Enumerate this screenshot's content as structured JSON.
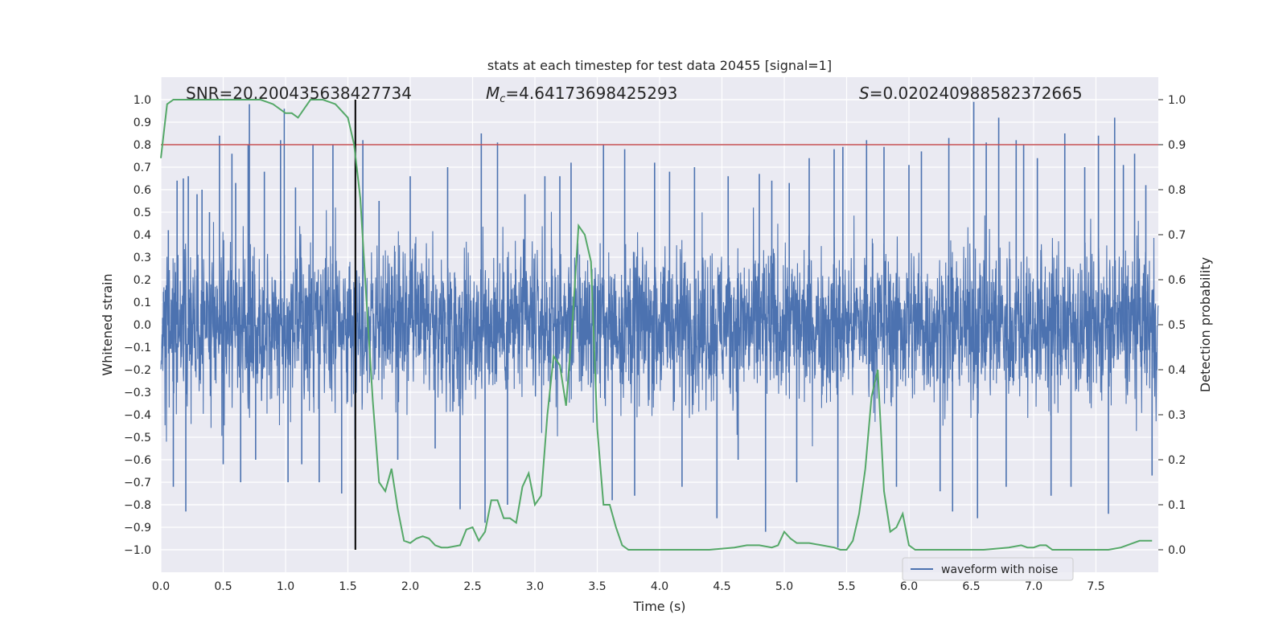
{
  "chart_data": {
    "type": "line",
    "title": "stats at each timestep for test data 20455 [signal=1]",
    "xlabel": "Time (s)",
    "ylabel": "Whitened strain",
    "y2label": "Detection probability",
    "xlim": [
      0.0,
      8.0
    ],
    "ylim": [
      -1.1,
      1.1
    ],
    "y2lim": [
      -0.05,
      1.05
    ],
    "xticks": [
      "0.0",
      "0.5",
      "1.0",
      "1.5",
      "2.0",
      "2.5",
      "3.0",
      "3.5",
      "4.0",
      "4.5",
      "5.0",
      "5.5",
      "6.0",
      "6.5",
      "7.0",
      "7.5"
    ],
    "yticks": [
      "1.0",
      "0.9",
      "0.8",
      "0.7",
      "0.6",
      "0.5",
      "0.4",
      "0.3",
      "0.2",
      "0.1",
      "0.0",
      "−0.1",
      "−0.2",
      "−0.3",
      "−0.4",
      "−0.5",
      "−0.6",
      "−0.7",
      "−0.8",
      "−0.9",
      "−1.0"
    ],
    "y2ticks": [
      "1.0",
      "0.9",
      "0.8",
      "0.7",
      "0.6",
      "0.5",
      "0.4",
      "0.3",
      "0.2",
      "0.1",
      "0.0"
    ],
    "grid": true,
    "legend_placement": "lower-right",
    "annotations": {
      "snr": "SNR=20.200435638427734",
      "mc_symbol": "M",
      "mc_sub": "c",
      "mc_value": "=4.64173698425293",
      "s_symbol": "S",
      "s_value": "=0.020240988582372665"
    },
    "threshold": {
      "value": 0.9,
      "axis": "right",
      "color": "#c44e52"
    },
    "marker_time": 1.56,
    "series": [
      {
        "name": "waveform with noise",
        "color": "#4c72b0",
        "axis": "left",
        "description_note": "dense noise",
        "typical_amplitude": 0.4,
        "peaks": [
          [
            0.06,
            0.42
          ],
          [
            0.1,
            -0.72
          ],
          [
            0.13,
            0.64
          ],
          [
            0.18,
            0.65
          ],
          [
            0.2,
            -0.83
          ],
          [
            0.22,
            0.66
          ],
          [
            0.29,
            0.58
          ],
          [
            0.33,
            0.6
          ],
          [
            0.39,
            0.5
          ],
          [
            0.47,
            0.84
          ],
          [
            0.5,
            -0.62
          ],
          [
            0.57,
            0.76
          ],
          [
            0.6,
            0.63
          ],
          [
            0.64,
            -0.7
          ],
          [
            0.7,
            0.8
          ],
          [
            0.71,
            0.98
          ],
          [
            0.76,
            -0.6
          ],
          [
            0.83,
            0.68
          ],
          [
            0.96,
            0.82
          ],
          [
            0.99,
            0.96
          ],
          [
            1.02,
            -0.7
          ],
          [
            1.08,
            0.61
          ],
          [
            1.13,
            -0.62
          ],
          [
            1.22,
            0.8
          ],
          [
            1.27,
            -0.7
          ],
          [
            1.38,
            0.8
          ],
          [
            1.45,
            -0.75
          ],
          [
            1.56,
            0.8
          ],
          [
            1.62,
            0.82
          ],
          [
            1.75,
            0.55
          ],
          [
            1.9,
            -0.6
          ],
          [
            2.0,
            0.66
          ],
          [
            2.2,
            -0.55
          ],
          [
            2.3,
            0.7
          ],
          [
            2.4,
            -0.82
          ],
          [
            2.57,
            0.85
          ],
          [
            2.6,
            -0.88
          ],
          [
            2.7,
            0.81
          ],
          [
            2.78,
            -0.8
          ],
          [
            2.92,
            0.58
          ],
          [
            3.08,
            0.66
          ],
          [
            3.2,
            0.66
          ],
          [
            3.29,
            0.72
          ],
          [
            3.55,
            0.8
          ],
          [
            3.62,
            -0.78
          ],
          [
            3.72,
            0.78
          ],
          [
            3.8,
            -0.76
          ],
          [
            3.96,
            0.72
          ],
          [
            4.08,
            0.68
          ],
          [
            4.18,
            -0.72
          ],
          [
            4.28,
            0.7
          ],
          [
            4.46,
            -0.86
          ],
          [
            4.55,
            0.66
          ],
          [
            4.63,
            -0.6
          ],
          [
            4.8,
            0.67
          ],
          [
            4.85,
            -0.92
          ],
          [
            4.9,
            0.64
          ],
          [
            5.04,
            0.63
          ],
          [
            5.1,
            -0.7
          ],
          [
            5.2,
            0.74
          ],
          [
            5.4,
            0.78
          ],
          [
            5.43,
            -0.99
          ],
          [
            5.47,
            0.79
          ],
          [
            5.66,
            0.82
          ],
          [
            5.8,
            0.79
          ],
          [
            5.9,
            -0.72
          ],
          [
            6.0,
            0.71
          ],
          [
            6.1,
            0.77
          ],
          [
            6.25,
            -0.74
          ],
          [
            6.32,
            0.83
          ],
          [
            6.35,
            -0.83
          ],
          [
            6.52,
            0.99
          ],
          [
            6.55,
            -0.86
          ],
          [
            6.62,
            0.81
          ],
          [
            6.72,
            0.92
          ],
          [
            6.78,
            -0.72
          ],
          [
            6.86,
            0.82
          ],
          [
            6.92,
            0.8
          ],
          [
            7.03,
            0.74
          ],
          [
            7.14,
            -0.76
          ],
          [
            7.25,
            0.85
          ],
          [
            7.3,
            -0.72
          ],
          [
            7.41,
            0.7
          ],
          [
            7.52,
            0.84
          ],
          [
            7.6,
            -0.84
          ],
          [
            7.65,
            0.92
          ],
          [
            7.72,
            0.71
          ],
          [
            7.81,
            0.76
          ],
          [
            7.9,
            0.62
          ],
          [
            7.95,
            -0.67
          ]
        ]
      },
      {
        "name": "",
        "color": "#55a868",
        "axis": "right",
        "x": [
          0.0,
          0.05,
          0.1,
          0.15,
          0.2,
          0.3,
          0.4,
          0.5,
          0.6,
          0.7,
          0.8,
          0.9,
          1.0,
          1.05,
          1.1,
          1.2,
          1.3,
          1.4,
          1.5,
          1.55,
          1.6,
          1.65,
          1.7,
          1.75,
          1.8,
          1.85,
          1.9,
          1.95,
          2.0,
          2.05,
          2.1,
          2.15,
          2.2,
          2.25,
          2.3,
          2.4,
          2.45,
          2.5,
          2.55,
          2.6,
          2.65,
          2.7,
          2.75,
          2.8,
          2.85,
          2.9,
          2.95,
          3.0,
          3.05,
          3.1,
          3.15,
          3.2,
          3.25,
          3.3,
          3.35,
          3.4,
          3.45,
          3.5,
          3.55,
          3.6,
          3.65,
          3.7,
          3.75,
          3.8,
          3.85,
          3.9,
          4.0,
          4.2,
          4.4,
          4.6,
          4.7,
          4.8,
          4.9,
          4.95,
          5.0,
          5.05,
          5.1,
          5.2,
          5.3,
          5.4,
          5.45,
          5.5,
          5.55,
          5.6,
          5.65,
          5.7,
          5.75,
          5.8,
          5.85,
          5.9,
          5.95,
          6.0,
          6.05,
          6.1,
          6.2,
          6.4,
          6.6,
          6.8,
          6.9,
          6.95,
          7.0,
          7.05,
          7.1,
          7.15,
          7.2,
          7.25,
          7.3,
          7.5,
          7.6,
          7.7,
          7.8,
          7.85,
          7.9,
          7.95
        ],
        "values": [
          0.87,
          0.99,
          1.0,
          1.0,
          1.0,
          1.0,
          1.0,
          1.0,
          1.0,
          1.0,
          1.0,
          0.99,
          0.97,
          0.97,
          0.96,
          1.0,
          1.0,
          0.99,
          0.96,
          0.9,
          0.78,
          0.55,
          0.33,
          0.15,
          0.13,
          0.18,
          0.09,
          0.02,
          0.015,
          0.025,
          0.03,
          0.025,
          0.01,
          0.005,
          0.005,
          0.01,
          0.045,
          0.05,
          0.02,
          0.04,
          0.11,
          0.11,
          0.07,
          0.07,
          0.06,
          0.14,
          0.17,
          0.1,
          0.12,
          0.3,
          0.43,
          0.41,
          0.32,
          0.5,
          0.72,
          0.7,
          0.64,
          0.27,
          0.1,
          0.1,
          0.05,
          0.01,
          0.0,
          0.0,
          0.0,
          0.0,
          0.0,
          0.0,
          0.0,
          0.005,
          0.01,
          0.01,
          0.005,
          0.01,
          0.04,
          0.025,
          0.015,
          0.015,
          0.01,
          0.005,
          0.0,
          0.0,
          0.02,
          0.08,
          0.18,
          0.34,
          0.4,
          0.13,
          0.04,
          0.05,
          0.08,
          0.01,
          0.0,
          0.0,
          0.0,
          0.0,
          0.0,
          0.005,
          0.01,
          0.005,
          0.005,
          0.01,
          0.01,
          0.0,
          0.0,
          0.0,
          0.0,
          0.0,
          0.0,
          0.005,
          0.015,
          0.02,
          0.02,
          0.02
        ]
      }
    ]
  }
}
